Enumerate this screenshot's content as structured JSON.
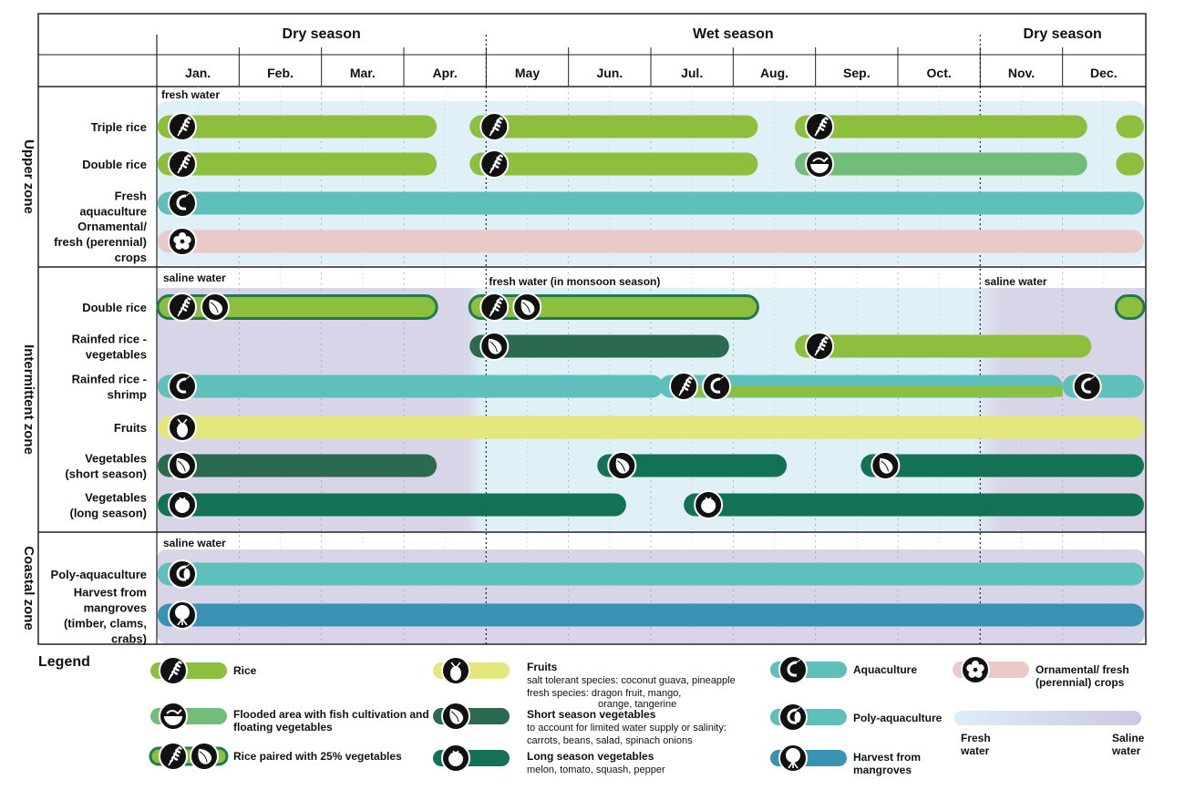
{
  "chart_data": {
    "type": "timeline",
    "seasons": [
      "Dry season",
      "Wet season",
      "Dry season"
    ],
    "months": [
      "Jan.",
      "Feb.",
      "Mar.",
      "Apr.",
      "May",
      "Jun.",
      "Jul.",
      "Aug.",
      "Sep.",
      "Oct.",
      "Nov.",
      "Dec."
    ],
    "zones": [
      {
        "name": "Upper zone",
        "water_labels": [
          "fresh water"
        ]
      },
      {
        "name": "Intermittent zone",
        "water_labels": [
          "saline water",
          "fresh water (in monsoon season)",
          "saline water"
        ]
      },
      {
        "name": "Coastal zone",
        "water_labels": [
          "saline water"
        ]
      }
    ],
    "rows": [
      {
        "zone": "Upper zone",
        "label": [
          "Triple rice"
        ],
        "bars": [
          {
            "start": 0.0,
            "end": 3.4,
            "type": "rice",
            "icons": [
              "rice"
            ]
          },
          {
            "start": 3.8,
            "end": 7.3,
            "type": "rice",
            "icons": [
              "rice"
            ]
          },
          {
            "start": 7.75,
            "end": 11.3,
            "type": "rice",
            "icons": [
              "rice"
            ]
          },
          {
            "start": 11.65,
            "end": 12.0,
            "type": "rice",
            "icons": []
          }
        ]
      },
      {
        "zone": "Upper zone",
        "label": [
          "Double rice"
        ],
        "bars": [
          {
            "start": 0.0,
            "end": 3.4,
            "type": "rice",
            "icons": [
              "rice"
            ]
          },
          {
            "start": 3.8,
            "end": 7.3,
            "type": "rice",
            "icons": [
              "rice"
            ]
          },
          {
            "start": 7.75,
            "end": 11.3,
            "type": "flooded",
            "icons": [
              "fish-bowl"
            ]
          },
          {
            "start": 11.65,
            "end": 12.0,
            "type": "rice",
            "icons": []
          }
        ]
      },
      {
        "zone": "Upper zone",
        "label": [
          "Fresh",
          "aquaculture"
        ],
        "bars": [
          {
            "start": 0.0,
            "end": 12.0,
            "type": "aquaculture",
            "icons": [
              "shrimp"
            ]
          }
        ]
      },
      {
        "zone": "Upper zone",
        "label": [
          "Ornamental/",
          "fresh (perennial)",
          "crops"
        ],
        "bars": [
          {
            "start": 0.0,
            "end": 12.0,
            "type": "ornamental",
            "icons": [
              "flower"
            ]
          }
        ]
      },
      {
        "zone": "Intermittent zone",
        "label": [
          "Double rice"
        ],
        "bars": [
          {
            "start": 0.0,
            "end": 3.4,
            "type": "rice_veg",
            "icons": [
              "rice",
              "onion"
            ]
          },
          {
            "start": 3.8,
            "end": 7.3,
            "type": "rice_veg",
            "icons": [
              "rice",
              "onion"
            ]
          },
          {
            "start": 11.65,
            "end": 12.0,
            "type": "rice_veg",
            "icons": []
          }
        ]
      },
      {
        "zone": "Intermittent zone",
        "label": [
          "Rainfed rice -",
          "vegetables"
        ],
        "bars": [
          {
            "start": 3.8,
            "end": 6.95,
            "type": "short_veg",
            "icons": [
              "onion"
            ]
          },
          {
            "start": 7.75,
            "end": 11.35,
            "type": "rice",
            "icons": [
              "rice"
            ]
          }
        ]
      },
      {
        "zone": "Intermittent zone",
        "label": [
          "Rainfed rice -",
          "shrimp"
        ],
        "bars": [
          {
            "start": 0.0,
            "end": 6.15,
            "type": "aquaculture",
            "icons": [
              "shrimp"
            ]
          },
          {
            "start": 6.1,
            "end": 11.0,
            "type": "rice_shrimp",
            "icons": [
              "rice",
              "shrimp"
            ]
          },
          {
            "start": 11.0,
            "end": 12.0,
            "type": "aquaculture",
            "icons": [
              "shrimp"
            ]
          }
        ]
      },
      {
        "zone": "Intermittent zone",
        "label": [
          "Fruits"
        ],
        "bars": [
          {
            "start": 0.0,
            "end": 12.0,
            "type": "fruits",
            "icons": [
              "pineapple"
            ]
          }
        ]
      },
      {
        "zone": "Intermittent zone",
        "label": [
          "Vegetables",
          "(short season)"
        ],
        "bars": [
          {
            "start": 0.0,
            "end": 3.4,
            "type": "short_veg",
            "icons": [
              "onion"
            ]
          },
          {
            "start": 5.35,
            "end": 7.65,
            "type": "long_veg",
            "icons": [
              "onion"
            ]
          },
          {
            "start": 8.55,
            "end": 12.0,
            "type": "long_veg",
            "icons": [
              "onion"
            ]
          }
        ]
      },
      {
        "zone": "Intermittent zone",
        "label": [
          "Vegetables",
          "(long season)"
        ],
        "bars": [
          {
            "start": 0.0,
            "end": 5.7,
            "type": "long_veg",
            "icons": [
              "tomato"
            ]
          },
          {
            "start": 6.4,
            "end": 12.0,
            "type": "long_veg",
            "icons": [
              "tomato"
            ]
          }
        ]
      },
      {
        "zone": "Coastal zone",
        "label": [
          "Poly-aquaculture"
        ],
        "bars": [
          {
            "start": 0.0,
            "end": 12.0,
            "type": "poly",
            "icons": [
              "shrimp-fish"
            ]
          }
        ]
      },
      {
        "zone": "Coastal zone",
        "label": [
          "Harvest from",
          "mangroves",
          "(timber, clams,",
          "crabs)"
        ],
        "bars": [
          {
            "start": 0.0,
            "end": 12.0,
            "type": "mangrove",
            "icons": [
              "mangrove"
            ]
          }
        ]
      }
    ],
    "colors": {
      "rice": "#8dbf3f",
      "flooded": "#72bd7a",
      "rice_veg": "#8dbf3f",
      "rice_veg_border": "#1f7a4e",
      "short_veg": "#2a6a4f",
      "long_veg": "#137255",
      "aquaculture": "#5fbfba",
      "poly": "#5fbfba",
      "fruits": "#e4e87c",
      "ornamental": "#ecc9c9",
      "mangrove": "#3892b3",
      "fresh_bg": "#dff0f7",
      "saline_bg": "#d8d5e8"
    },
    "legend": {
      "title": "Legend",
      "items": [
        {
          "key": "rice",
          "label": "Rice"
        },
        {
          "key": "flooded",
          "label": "Flooded area with fish cultivation and floating vegetables"
        },
        {
          "key": "rice_veg",
          "label": "Rice paired with 25% vegetables"
        },
        {
          "key": "fruits",
          "label": "Fruits",
          "desc": [
            "salt tolerant species: coconut guava, pineapple",
            "fresh species: dragon fruit, mango,",
            "orange, tangerine"
          ]
        },
        {
          "key": "short_veg",
          "label": "Short season vegetables",
          "desc": [
            "to account for limited water supply or salinity:",
            "carrots, beans, salad, spinach onions"
          ]
        },
        {
          "key": "long_veg",
          "label": "Long season vegetables",
          "desc": [
            "melon, tomato, squash, pepper"
          ]
        },
        {
          "key": "aquaculture",
          "label": "Aquaculture"
        },
        {
          "key": "poly",
          "label": "Poly-aquaculture"
        },
        {
          "key": "mangrove",
          "label": "Harvest from mangroves"
        },
        {
          "key": "ornamental",
          "label": "Ornamental/ fresh (perennial) crops"
        }
      ],
      "gradient": {
        "left": "Fresh water",
        "right": "Saline water"
      }
    }
  }
}
